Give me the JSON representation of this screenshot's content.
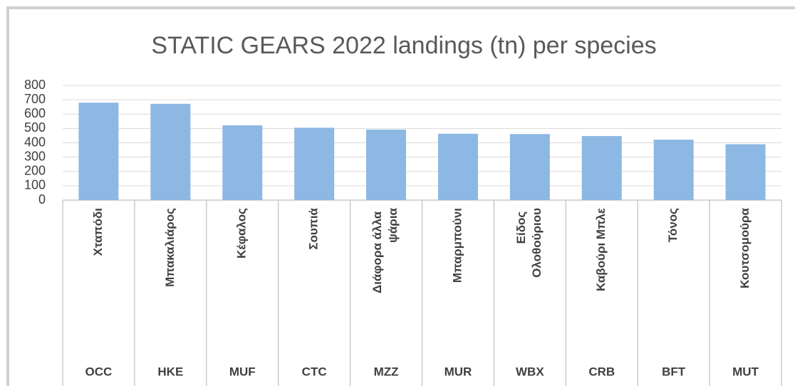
{
  "chart_data": {
    "type": "bar",
    "title": "STATIC GEARS 2022 landings (tn) per species",
    "categories": [
      "Χταπόδι",
      "Μπακαλιάρος",
      "Κέφαλος",
      "Σουπιά",
      "Διάφορα άλλα ψάρια",
      "Μπαρμπούνι",
      "Είδος Ολοθούριου",
      "Καβούρι Μπλε",
      "Τόνος",
      "Κουτσομούρα"
    ],
    "codes": [
      "OCC",
      "HKE",
      "MUF",
      "CTC",
      "MZZ",
      "MUR",
      "WBX",
      "CRB",
      "BFT",
      "MUT"
    ],
    "values": [
      680,
      672,
      522,
      505,
      492,
      463,
      461,
      447,
      422,
      390
    ],
    "color": "#8db8e3",
    "ylim": [
      0,
      800
    ],
    "yticks": [
      0,
      100,
      200,
      300,
      400,
      500,
      600,
      700,
      800
    ],
    "grid": true
  }
}
